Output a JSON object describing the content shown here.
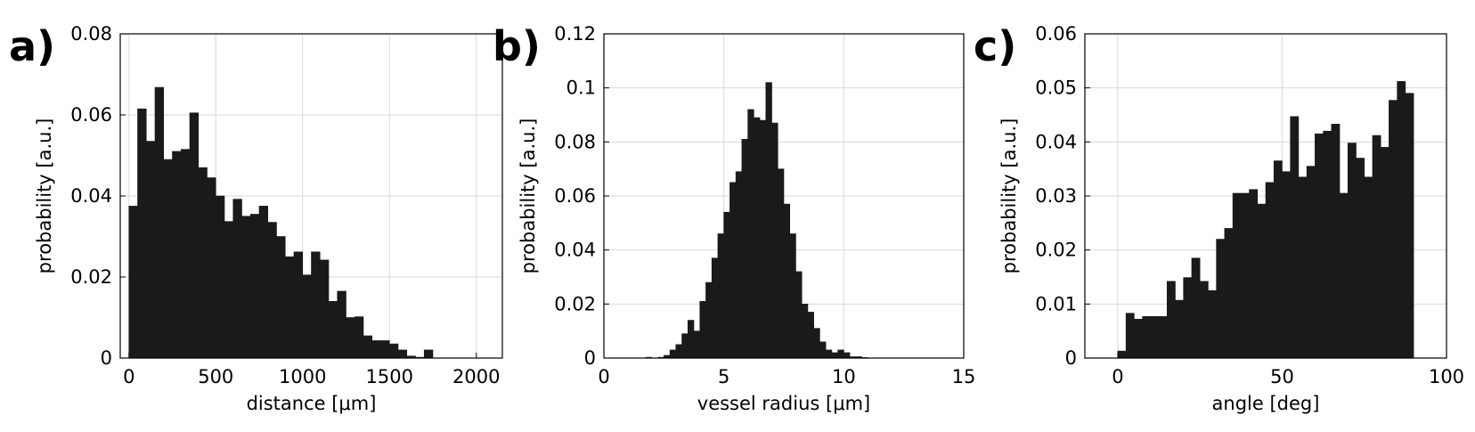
{
  "chart_data": [
    {
      "type": "histogram",
      "label": "a)",
      "xlabel": "distance [μm]",
      "ylabel": "probability [a.u.]",
      "color": "#1a1a1a",
      "grid": true,
      "xlim": [
        -50,
        2150
      ],
      "xticks": [
        0,
        500,
        1000,
        1500,
        2000
      ],
      "ylim": [
        0,
        0.08
      ],
      "yticks": [
        0,
        0.02,
        0.04,
        0.06,
        0.08
      ],
      "bins": [
        0,
        50,
        100,
        150,
        200,
        250,
        300,
        350,
        400,
        450,
        500,
        550,
        600,
        650,
        700,
        750,
        800,
        850,
        900,
        950,
        1000,
        1050,
        1100,
        1150,
        1200,
        1250,
        1300,
        1350,
        1400,
        1450,
        1500,
        1550,
        1600,
        1650,
        1700,
        1750
      ],
      "counts": [
        0.0375,
        0.0615,
        0.0535,
        0.0668,
        0.049,
        0.051,
        0.0515,
        0.0605,
        0.047,
        0.0445,
        0.04,
        0.0337,
        0.0392,
        0.035,
        0.0355,
        0.0375,
        0.0335,
        0.03,
        0.025,
        0.0262,
        0.0205,
        0.0262,
        0.0242,
        0.014,
        0.0165,
        0.01,
        0.0102,
        0.0055,
        0.0043,
        0.0043,
        0.0035,
        0.002,
        0.0005,
        0.0002,
        0.002
      ]
    },
    {
      "type": "histogram",
      "label": "b)",
      "xlabel": "vessel radius [μm]",
      "ylabel": "probability [a.u.]",
      "color": "#1a1a1a",
      "grid": true,
      "xlim": [
        0,
        15
      ],
      "xticks": [
        0,
        5,
        10,
        15
      ],
      "ylim": [
        0,
        0.12
      ],
      "yticks": [
        0,
        0.02,
        0.04,
        0.06,
        0.08,
        0.1,
        0.12
      ],
      "bins": [
        1.75,
        2,
        2.25,
        2.5,
        2.75,
        3,
        3.25,
        3.5,
        3.75,
        4,
        4.25,
        4.5,
        4.75,
        5,
        5.25,
        5.5,
        5.75,
        6,
        6.25,
        6.5,
        6.75,
        7,
        7.25,
        7.5,
        7.75,
        8,
        8.25,
        8.5,
        8.75,
        9,
        9.25,
        9.5,
        9.75,
        10,
        10.25,
        10.5,
        10.75,
        11
      ],
      "counts": [
        0.0003,
        0,
        0.0003,
        0.001,
        0.003,
        0.005,
        0.009,
        0.014,
        0.01,
        0.021,
        0.028,
        0.037,
        0.046,
        0.054,
        0.065,
        0.069,
        0.081,
        0.092,
        0.089,
        0.088,
        0.102,
        0.087,
        0.07,
        0.057,
        0.046,
        0.032,
        0.02,
        0.017,
        0.011,
        0.006,
        0.003,
        0.002,
        0.003,
        0.002,
        0.0005,
        0.0005,
        0.0002
      ]
    },
    {
      "type": "histogram",
      "label": "c)",
      "xlabel": "angle [deg]",
      "ylabel": "probability [a.u.]",
      "color": "#1a1a1a",
      "grid": true,
      "xlim": [
        -10,
        100
      ],
      "xticks": [
        0,
        50,
        100
      ],
      "ylim": [
        0,
        0.06
      ],
      "yticks": [
        0,
        0.01,
        0.02,
        0.03,
        0.04,
        0.05,
        0.06
      ],
      "bins": [
        0,
        2.5,
        5,
        7.5,
        10,
        12.5,
        15,
        17.5,
        20,
        22.5,
        25,
        27.5,
        30,
        32.5,
        35,
        37.5,
        40,
        42.5,
        45,
        47.5,
        50,
        52.5,
        55,
        57.5,
        60,
        62.5,
        65,
        67.5,
        70,
        72.5,
        75,
        77.5,
        80,
        82.5,
        85,
        87.5,
        90
      ],
      "counts": [
        0.0013,
        0.0083,
        0.0072,
        0.0077,
        0.0077,
        0.0077,
        0.0142,
        0.0107,
        0.0149,
        0.0185,
        0.0142,
        0.0125,
        0.022,
        0.024,
        0.0305,
        0.0305,
        0.0312,
        0.0285,
        0.0325,
        0.0365,
        0.0345,
        0.0447,
        0.0335,
        0.0355,
        0.0415,
        0.042,
        0.0433,
        0.0305,
        0.0398,
        0.037,
        0.0335,
        0.0412,
        0.039,
        0.0477,
        0.0512,
        0.049
      ]
    }
  ]
}
